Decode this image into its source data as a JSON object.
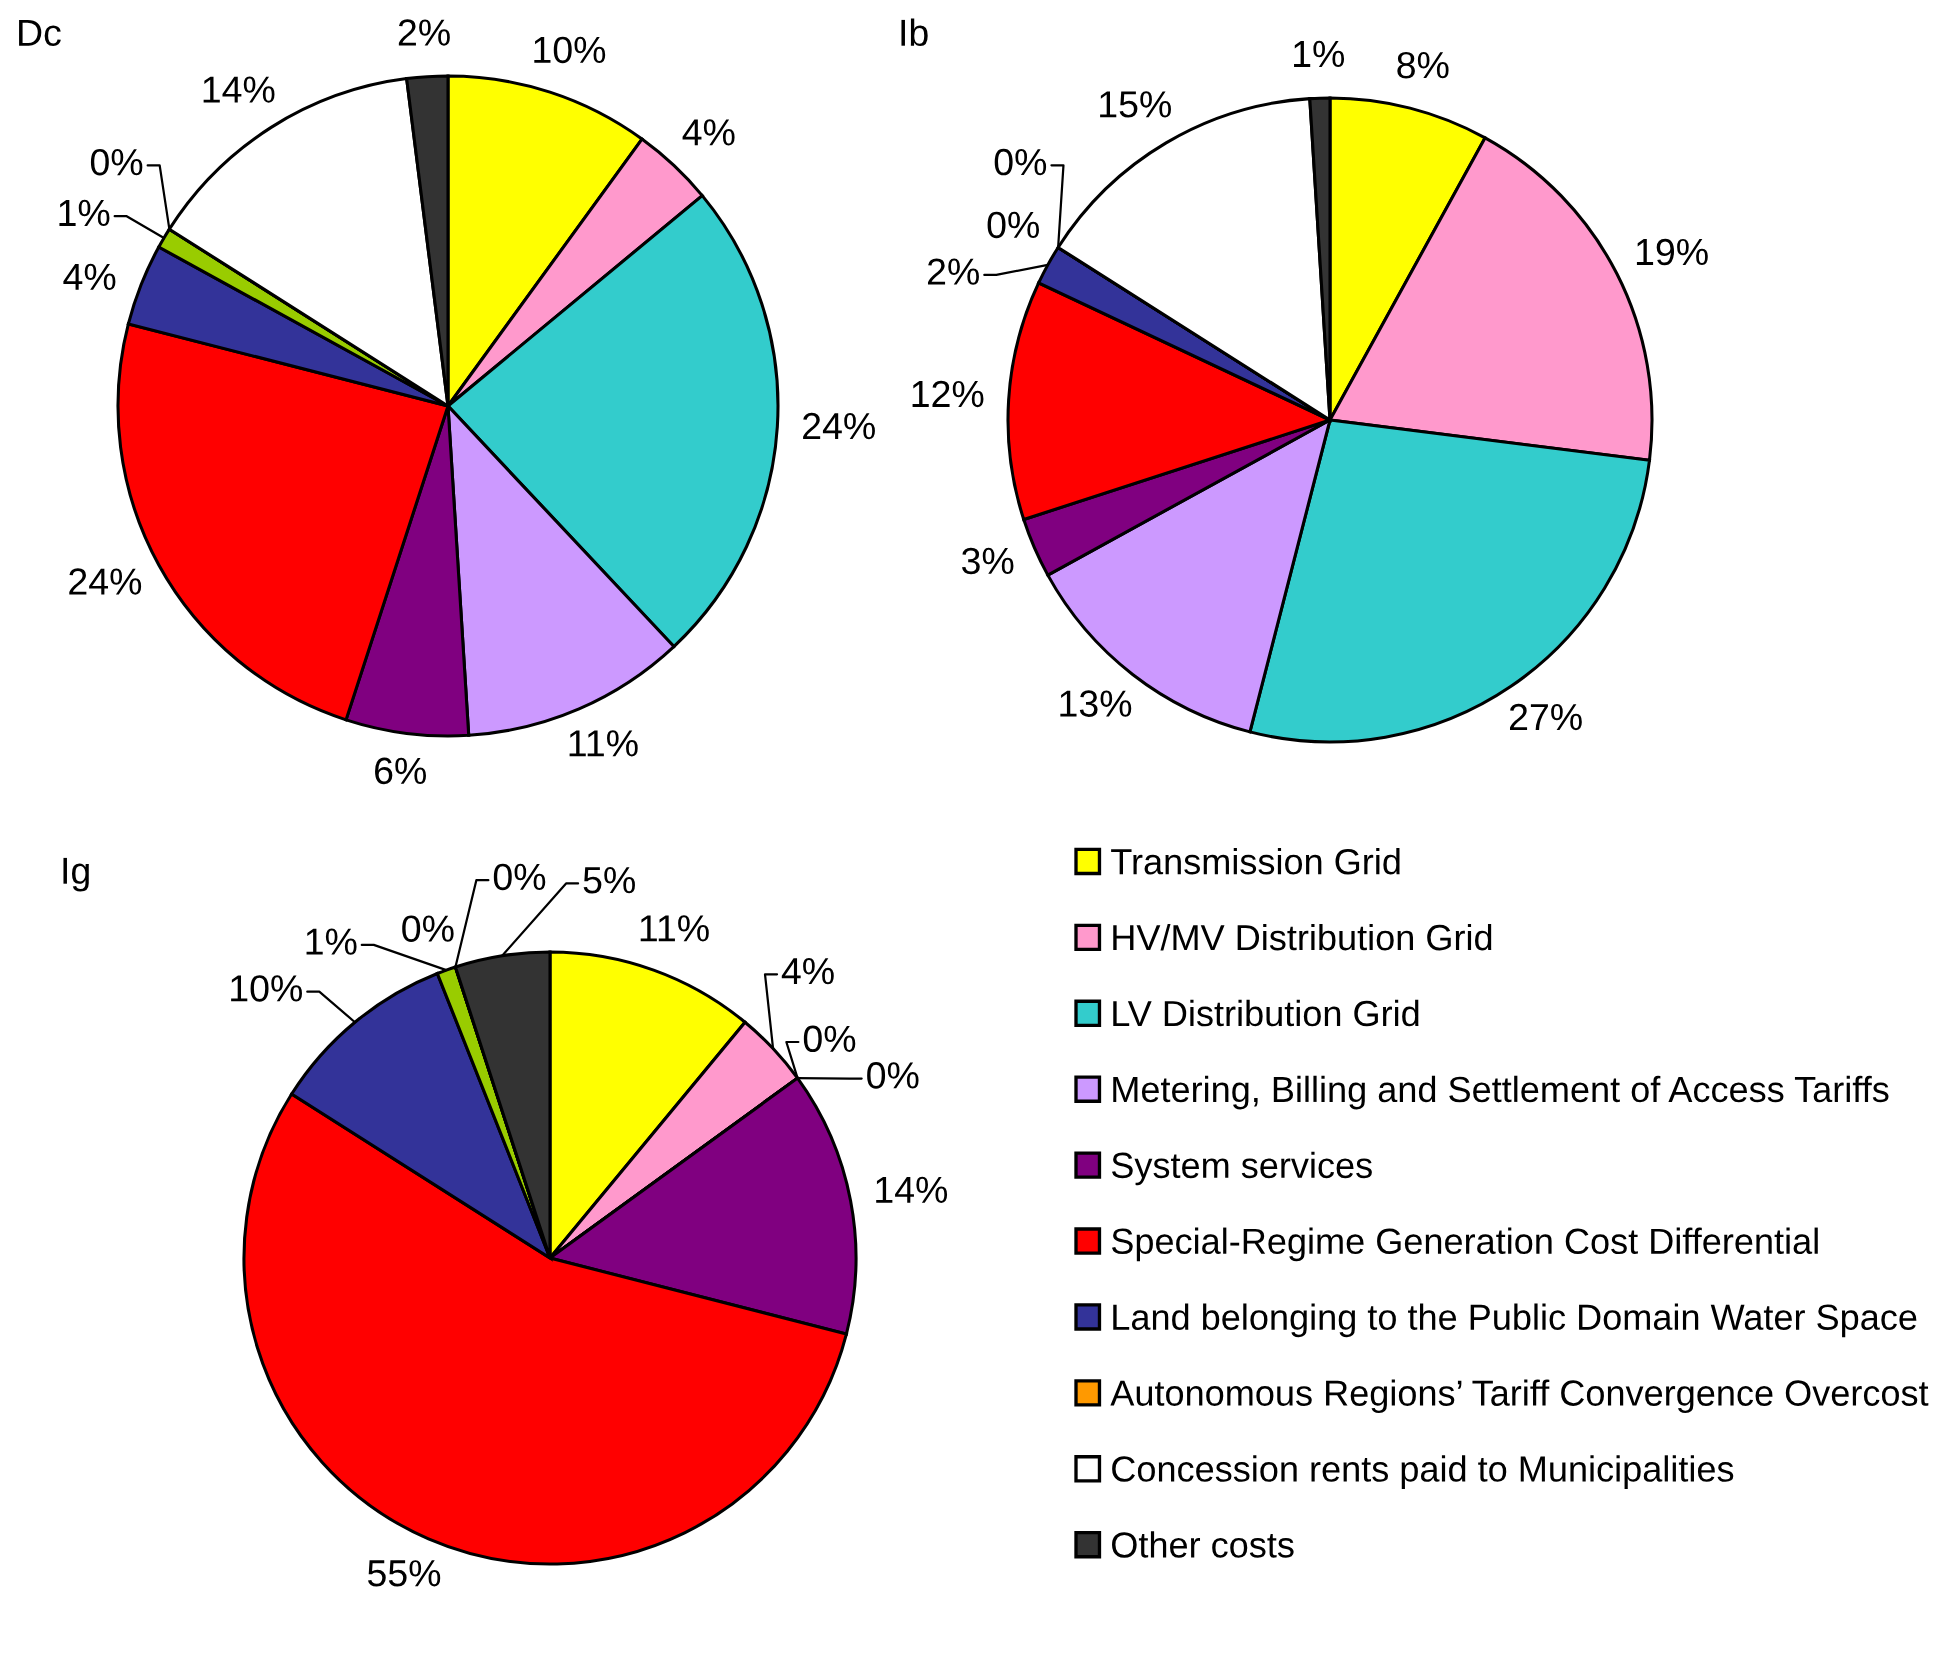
{
  "chart_data": [
    {
      "type": "pie",
      "title": "Dc",
      "categories": [
        "Transmission Grid",
        "HV/MV Distribution Grid",
        "LV Distribution Grid",
        "Metering, Billing and Settlement of Access Tariffs",
        "System services",
        "Special-Regime Generation Cost Differential",
        "Land belonging to the Public Domain Water Space",
        null,
        "Autonomous Regions’ Tariff Convergence Overcost",
        "Concession rents paid to Municipalities",
        "Other costs"
      ],
      "values": [
        10,
        4,
        24,
        11,
        6,
        24,
        4,
        1,
        0,
        14,
        2
      ],
      "colors": [
        "#ffff00",
        "#ff99cc",
        "#33cccc",
        "#cc99ff",
        "#800080",
        "#ff0000",
        "#333399",
        "#99cc00",
        "#ff9900",
        "#ffffff",
        "#333333"
      ],
      "value_labels": [
        "10%",
        "4%",
        "24%",
        "11%",
        "6%",
        "24%",
        "4%",
        "1%",
        "0%",
        "14%",
        "2%"
      ],
      "legend": "bottom right"
    },
    {
      "type": "pie",
      "title": "Ib",
      "values": [
        8,
        19,
        27,
        13,
        3,
        12,
        2,
        0,
        0,
        15,
        1
      ],
      "colors": [
        "#ffff00",
        "#ff99cc",
        "#33cccc",
        "#cc99ff",
        "#800080",
        "#ff0000",
        "#333399",
        "#99cc00",
        "#ff9900",
        "#ffffff",
        "#333333"
      ],
      "value_labels": [
        "8%",
        "19%",
        "27%",
        "13%",
        "3%",
        "12%",
        "2%",
        "0%",
        "0%",
        "15%",
        "1%"
      ]
    },
    {
      "type": "pie",
      "title": "Ig",
      "values": [
        11,
        4,
        0,
        0,
        14,
        55,
        10,
        1,
        0,
        0,
        5
      ],
      "colors": [
        "#ffff00",
        "#ff99cc",
        "#33cccc",
        "#cc99ff",
        "#800080",
        "#ff0000",
        "#333399",
        "#99cc00",
        "#ff9900",
        "#ffffff",
        "#333333"
      ],
      "value_labels": [
        "11%",
        "4%",
        "0%",
        "0%",
        "14%",
        "55%",
        "10%",
        "1%",
        "0%",
        "0%",
        "5%"
      ]
    }
  ]
}
